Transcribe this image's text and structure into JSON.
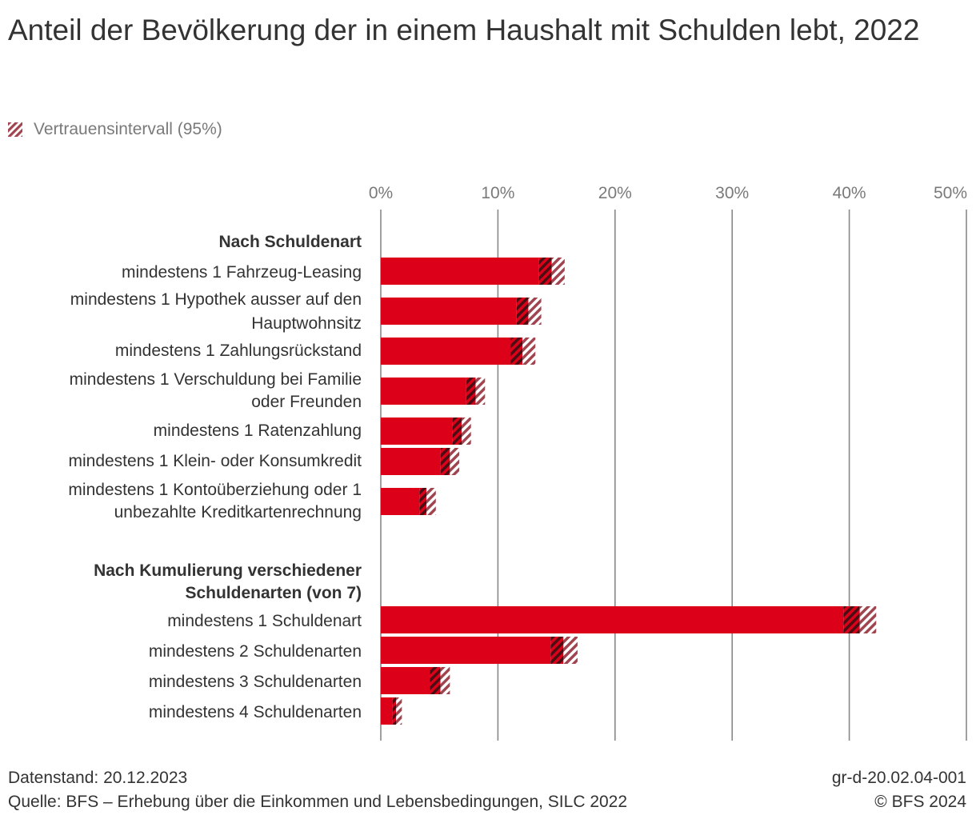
{
  "title": "Anteil der Bevölkerung der in einem Haushalt mit Schulden lebt, 2022",
  "legend": {
    "label": "Vertrauensintervall (95%)"
  },
  "colors": {
    "bar": "#dd0019",
    "ci_light": "#a04550",
    "ci_dark": "#4a0d14",
    "grid": "#888888",
    "axis_text": "#7a7a7a"
  },
  "chart_data": {
    "type": "bar",
    "orientation": "horizontal",
    "title": "Anteil der Bevölkerung der in einem Haushalt mit Schulden lebt, 2022",
    "xlim": [
      0,
      50
    ],
    "x_ticks": [
      "0%",
      "10%",
      "20%",
      "30%",
      "40%",
      "50%"
    ],
    "grid": true,
    "legend_position": "top-left",
    "groups": [
      {
        "label": "Nach Schuldenart",
        "items": [
          {
            "label": "mindestens 1 Fahrzeug-Leasing",
            "value": 14.6,
            "ci_low": 13.5,
            "ci_high": 15.7
          },
          {
            "label": "mindestens 1 Hypothek ausser auf den Hauptwohnsitz",
            "value": 12.6,
            "ci_low": 11.6,
            "ci_high": 13.7
          },
          {
            "label": "mindestens 1 Zahlungsrückstand",
            "value": 12.1,
            "ci_low": 11.1,
            "ci_high": 13.2
          },
          {
            "label": "mindestens 1 Verschuldung bei Familie oder Freunden",
            "value": 8.1,
            "ci_low": 7.3,
            "ci_high": 8.9
          },
          {
            "label": "mindestens 1 Ratenzahlung",
            "value": 6.9,
            "ci_low": 6.1,
            "ci_high": 7.7
          },
          {
            "label": "mindestens 1 Klein- oder Konsumkredit",
            "value": 5.9,
            "ci_low": 5.1,
            "ci_high": 6.7
          },
          {
            "label": "mindestens 1 Kontoüberziehung oder 1 unbezahlte Kreditkartenrechnung",
            "value": 3.9,
            "ci_low": 3.3,
            "ci_high": 4.7
          }
        ]
      },
      {
        "label": "Nach Kumulierung verschiedener Schuldenarten (von 7)",
        "items": [
          {
            "label": "mindestens 1 Schuldenart",
            "value": 40.9,
            "ci_low": 39.5,
            "ci_high": 42.3
          },
          {
            "label": "mindestens 2 Schuldenarten",
            "value": 15.6,
            "ci_low": 14.5,
            "ci_high": 16.8
          },
          {
            "label": "mindestens 3 Schuldenarten",
            "value": 5.1,
            "ci_low": 4.2,
            "ci_high": 5.9
          },
          {
            "label": "mindestens 4 Schuldenarten",
            "value": 1.3,
            "ci_low": 1.0,
            "ci_high": 1.8
          }
        ]
      }
    ]
  },
  "footer": {
    "date": "Datenstand: 20.12.2023",
    "source": "Quelle: BFS – Erhebung über die Einkommen und Lebensbedingungen, SILC 2022",
    "code": "gr-d-20.02.04-001",
    "copyright": "© BFS 2024"
  }
}
